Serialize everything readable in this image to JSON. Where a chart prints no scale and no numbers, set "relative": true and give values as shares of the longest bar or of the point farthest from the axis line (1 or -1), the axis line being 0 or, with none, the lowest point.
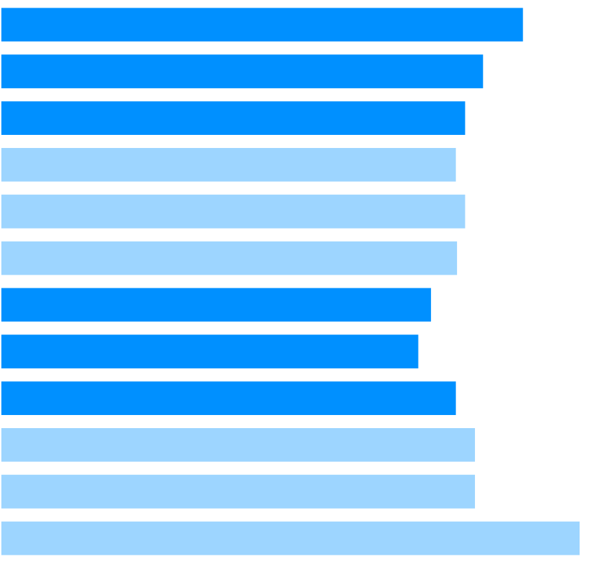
{
  "chart_data": {
    "type": "bar",
    "orientation": "horizontal",
    "relative": true,
    "categories": [
      null,
      null,
      null,
      null,
      null,
      null,
      null,
      null,
      null,
      null,
      null,
      null
    ],
    "values": [
      0.902,
      0.833,
      0.802,
      0.786,
      0.802,
      0.788,
      0.743,
      0.721,
      0.786,
      0.819,
      0.819,
      1
    ],
    "colors": [
      "#0090ff",
      "#0090ff",
      "#0090ff",
      "#9dd5ff",
      "#9dd5ff",
      "#9dd5ff",
      "#0090ff",
      "#0090ff",
      "#0090ff",
      "#9dd5ff",
      "#9dd5ff",
      "#9dd5ff"
    ]
  }
}
